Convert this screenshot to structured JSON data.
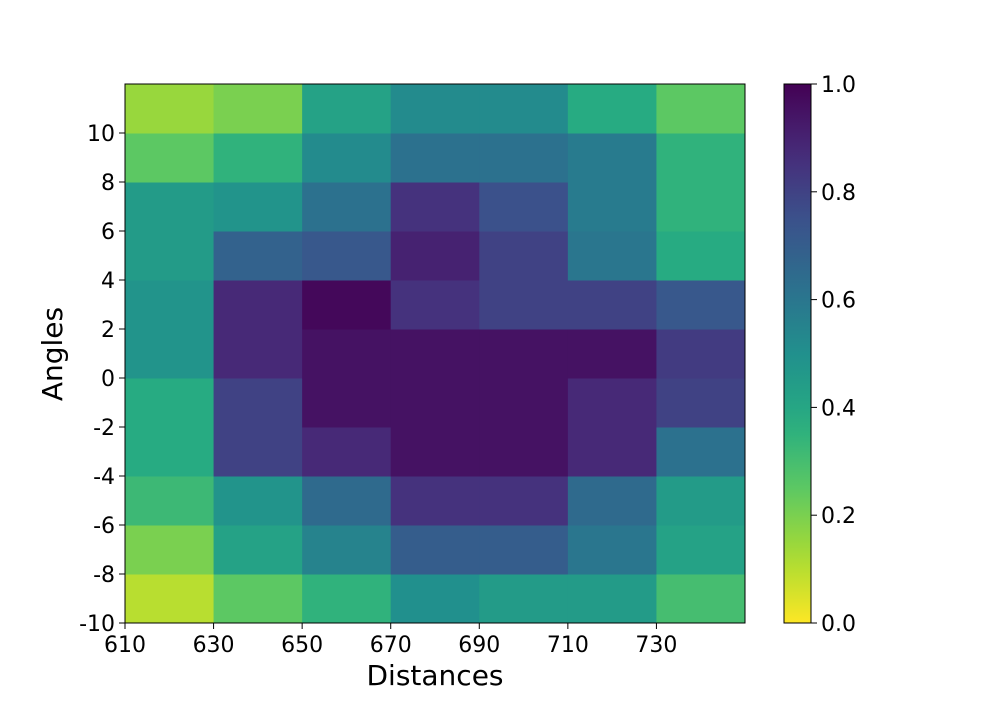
{
  "chart_data": {
    "type": "heatmap",
    "title": "",
    "xlabel": "Distances",
    "ylabel": "Angles",
    "x_edges": [
      610,
      630,
      650,
      670,
      690,
      710,
      730,
      750
    ],
    "y_edges": [
      -10,
      -8,
      -6,
      -4,
      -2,
      0,
      2,
      4,
      6,
      8,
      10,
      12
    ],
    "x_ticks": [
      610,
      630,
      650,
      670,
      690,
      710,
      730
    ],
    "x_tick_labels": [
      "610",
      "630",
      "650",
      "670",
      "690",
      "710",
      "730"
    ],
    "y_ticks": [
      -10,
      -8,
      -6,
      -4,
      -2,
      0,
      2,
      4,
      6,
      8,
      10
    ],
    "y_tick_labels": [
      "-10",
      "-8",
      "-6",
      "-4",
      "-2",
      "0",
      "2",
      "4",
      "6",
      "8",
      "10"
    ],
    "xlim": [
      610,
      750
    ],
    "ylim": [
      -10,
      12
    ],
    "values": [
      [
        0.1,
        0.25,
        0.35,
        0.5,
        0.45,
        0.45,
        0.3
      ],
      [
        0.2,
        0.42,
        0.55,
        0.7,
        0.7,
        0.6,
        0.42
      ],
      [
        0.32,
        0.48,
        0.65,
        0.85,
        0.85,
        0.65,
        0.45
      ],
      [
        0.38,
        0.8,
        0.88,
        0.95,
        0.95,
        0.88,
        0.62
      ],
      [
        0.38,
        0.8,
        0.95,
        0.95,
        0.95,
        0.88,
        0.8
      ],
      [
        0.48,
        0.88,
        0.95,
        0.95,
        0.95,
        0.95,
        0.82
      ],
      [
        0.48,
        0.88,
        0.98,
        0.85,
        0.8,
        0.8,
        0.72
      ],
      [
        0.45,
        0.68,
        0.72,
        0.9,
        0.8,
        0.6,
        0.38
      ],
      [
        0.45,
        0.48,
        0.62,
        0.85,
        0.75,
        0.58,
        0.35
      ],
      [
        0.25,
        0.35,
        0.52,
        0.62,
        0.62,
        0.58,
        0.35
      ],
      [
        0.15,
        0.2,
        0.42,
        0.52,
        0.52,
        0.38,
        0.25
      ]
    ],
    "colormap": "viridis_r",
    "colorbar": {
      "range": [
        0.0,
        1.0
      ],
      "ticks": [
        0.0,
        0.2,
        0.4,
        0.6,
        0.8,
        1.0
      ],
      "tick_labels": [
        "0.0",
        "0.2",
        "0.4",
        "0.6",
        "0.8",
        "1.0"
      ]
    },
    "grid": false
  }
}
